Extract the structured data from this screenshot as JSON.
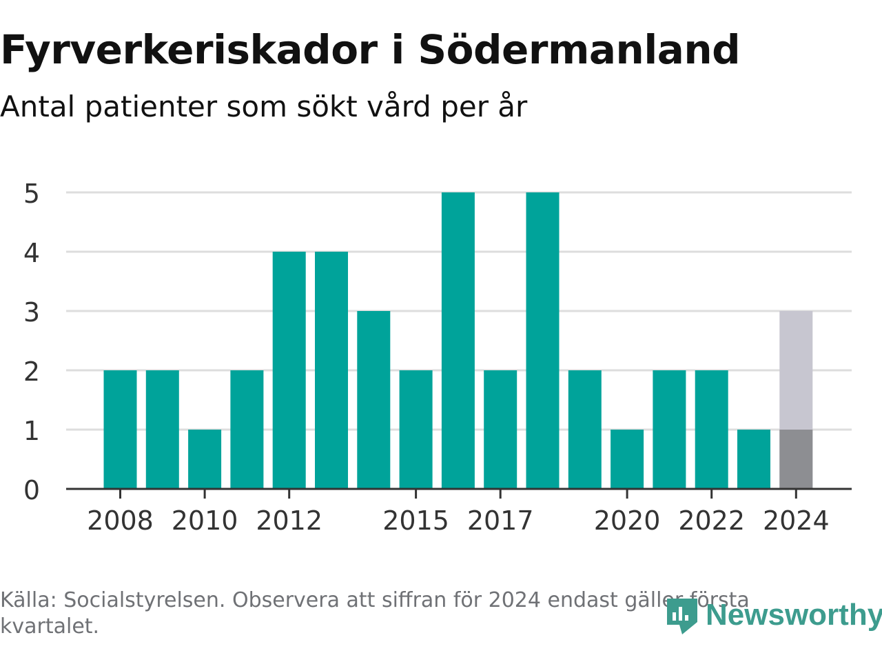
{
  "title": "Fyrverkeriskador i Södermanland",
  "subtitle": "Antal patienter som sökt vård per år",
  "footer": {
    "source_note": "Källa: Socialstyrelsen. Observera att siffran för 2024 endast gäller första kvartalet."
  },
  "brand": {
    "name": "Newsworthy",
    "icon": "newsworthy-logo-icon",
    "color": "#3d9c8e"
  },
  "colors": {
    "bar": "#00a39a",
    "partial_year_fill": "#8d8e92",
    "partial_year_remainder": "#c7c6d0",
    "grid": "#dddddd",
    "axis": "#333333",
    "tick_text": "#333333"
  },
  "chart_data": {
    "type": "bar",
    "title": "Fyrverkeriskador i Södermanland",
    "subtitle": "Antal patienter som sökt vård per år",
    "xlabel": "",
    "ylabel": "",
    "ylim": [
      0,
      5
    ],
    "yticks": [
      0,
      1,
      2,
      3,
      4,
      5
    ],
    "x_tick_labels": [
      "2008",
      "2010",
      "2012",
      "2015",
      "2017",
      "2020",
      "2022",
      "2024"
    ],
    "grid": true,
    "categories": [
      "2008",
      "2009",
      "2010",
      "2011",
      "2012",
      "2013",
      "2014",
      "2015",
      "2016",
      "2017",
      "2018",
      "2019",
      "2020",
      "2021",
      "2022",
      "2023",
      "2024"
    ],
    "values": [
      2,
      2,
      1,
      2,
      4,
      4,
      3,
      2,
      5,
      2,
      5,
      2,
      1,
      2,
      2,
      1,
      1
    ],
    "partial_year": {
      "category": "2024",
      "value": 1,
      "bar_extent": 3
    }
  }
}
